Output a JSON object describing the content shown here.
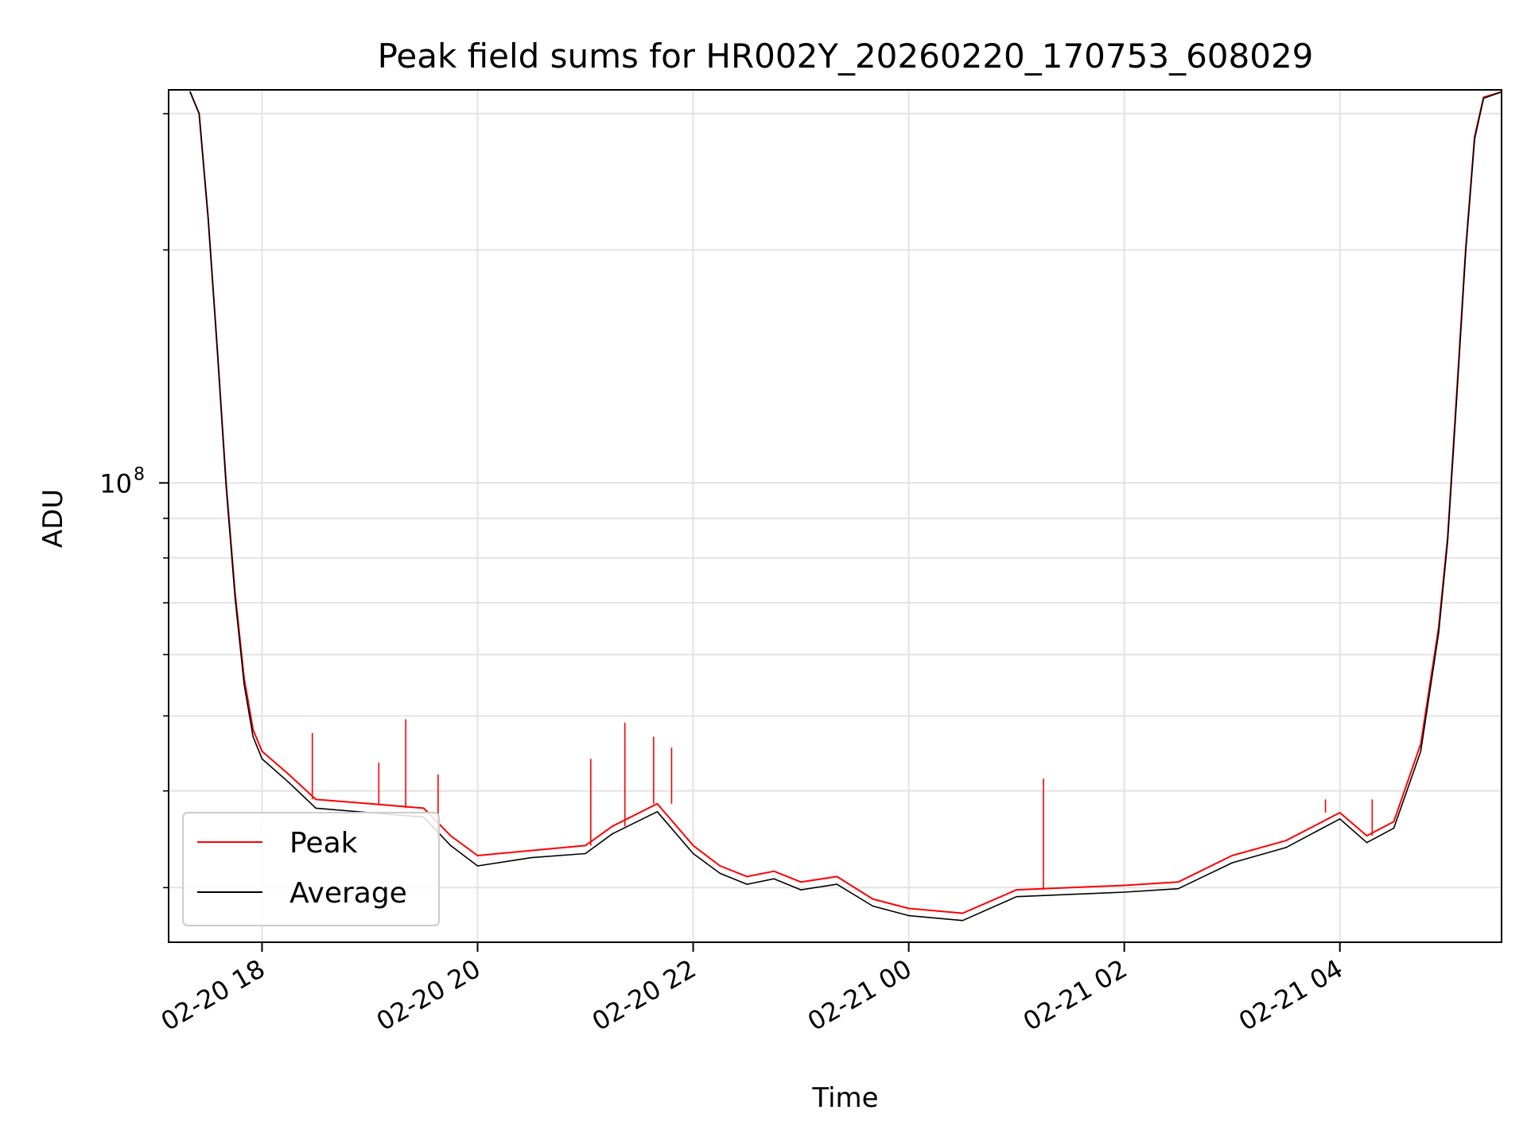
{
  "chart_data": {
    "type": "line",
    "title": "Peak field sums for HR002Y_20260220_170753_608029",
    "xlabel": "Time",
    "ylabel": "ADU",
    "x_type": "datetime",
    "xlim": [
      "2026-02-20 17:08",
      "2026-02-21 05:30"
    ],
    "ylim": [
      25500000,
      322000000
    ],
    "y_scale": "log",
    "x_ticks": [
      {
        "t": "2026-02-20 18:00",
        "label": "02-20 18"
      },
      {
        "t": "2026-02-20 20:00",
        "label": "02-20 20"
      },
      {
        "t": "2026-02-20 22:00",
        "label": "02-20 22"
      },
      {
        "t": "2026-02-21 00:00",
        "label": "02-21 00"
      },
      {
        "t": "2026-02-21 02:00",
        "label": "02-21 02"
      },
      {
        "t": "2026-02-21 04:00",
        "label": "02-21 04"
      }
    ],
    "y_ticks_major": [
      {
        "value": 100000000,
        "label": "10",
        "exponent": "8"
      }
    ],
    "y_ticks_minor": [
      30000000,
      40000000,
      50000000,
      60000000,
      70000000,
      80000000,
      90000000,
      200000000,
      300000000
    ],
    "grid": true,
    "legend_position": "lower-left",
    "series": [
      {
        "name": "Peak",
        "color": "#ff0000",
        "points": [
          [
            "2026-02-20 17:20",
            320000000
          ],
          [
            "2026-02-20 17:25",
            300000000
          ],
          [
            "2026-02-20 17:30",
            220000000
          ],
          [
            "2026-02-20 17:35",
            150000000
          ],
          [
            "2026-02-20 17:40",
            100000000
          ],
          [
            "2026-02-20 17:45",
            72000000
          ],
          [
            "2026-02-20 17:50",
            56000000
          ],
          [
            "2026-02-20 17:55",
            48000000
          ],
          [
            "2026-02-20 18:00",
            45000000
          ],
          [
            "2026-02-20 18:15",
            42000000
          ],
          [
            "2026-02-20 18:30",
            39000000
          ],
          [
            "2026-02-20 19:00",
            38500000
          ],
          [
            "2026-02-20 19:30",
            38000000
          ],
          [
            "2026-02-20 19:45",
            35000000
          ],
          [
            "2026-02-20 20:00",
            33000000
          ],
          [
            "2026-02-20 20:30",
            33500000
          ],
          [
            "2026-02-20 21:00",
            34000000
          ],
          [
            "2026-02-20 21:15",
            36000000
          ],
          [
            "2026-02-20 21:40",
            38500000
          ],
          [
            "2026-02-20 22:00",
            34000000
          ],
          [
            "2026-02-20 22:15",
            32000000
          ],
          [
            "2026-02-20 22:30",
            31000000
          ],
          [
            "2026-02-20 22:45",
            31500000
          ],
          [
            "2026-02-20 23:00",
            30500000
          ],
          [
            "2026-02-20 23:20",
            31000000
          ],
          [
            "2026-02-20 23:40",
            29000000
          ],
          [
            "2026-02-21 00:00",
            28200000
          ],
          [
            "2026-02-21 00:30",
            27800000
          ],
          [
            "2026-02-21 01:00",
            29800000
          ],
          [
            "2026-02-21 01:30",
            30000000
          ],
          [
            "2026-02-21 02:00",
            30200000
          ],
          [
            "2026-02-21 02:30",
            30500000
          ],
          [
            "2026-02-21 03:00",
            33000000
          ],
          [
            "2026-02-21 03:30",
            34500000
          ],
          [
            "2026-02-21 04:00",
            37500000
          ],
          [
            "2026-02-21 04:15",
            35000000
          ],
          [
            "2026-02-21 04:30",
            36500000
          ],
          [
            "2026-02-21 04:45",
            46000000
          ],
          [
            "2026-02-21 04:55",
            65000000
          ],
          [
            "2026-02-21 05:00",
            85000000
          ],
          [
            "2026-02-21 05:05",
            130000000
          ],
          [
            "2026-02-21 05:10",
            200000000
          ],
          [
            "2026-02-21 05:15",
            280000000
          ],
          [
            "2026-02-21 05:20",
            315000000
          ],
          [
            "2026-02-21 05:30",
            320000000
          ]
        ]
      },
      {
        "name": "Average",
        "color": "#000000",
        "points": [
          [
            "2026-02-20 17:20",
            320000000
          ],
          [
            "2026-02-20 17:25",
            300000000
          ],
          [
            "2026-02-20 17:30",
            220000000
          ],
          [
            "2026-02-20 17:35",
            150000000
          ],
          [
            "2026-02-20 17:40",
            99000000
          ],
          [
            "2026-02-20 17:45",
            71000000
          ],
          [
            "2026-02-20 17:50",
            55000000
          ],
          [
            "2026-02-20 17:55",
            47000000
          ],
          [
            "2026-02-20 18:00",
            44000000
          ],
          [
            "2026-02-20 18:15",
            41000000
          ],
          [
            "2026-02-20 18:30",
            38000000
          ],
          [
            "2026-02-20 19:00",
            37500000
          ],
          [
            "2026-02-20 19:30",
            37000000
          ],
          [
            "2026-02-20 19:45",
            34000000
          ],
          [
            "2026-02-20 20:00",
            32000000
          ],
          [
            "2026-02-20 20:30",
            32800000
          ],
          [
            "2026-02-20 21:00",
            33200000
          ],
          [
            "2026-02-20 21:15",
            35200000
          ],
          [
            "2026-02-20 21:40",
            37600000
          ],
          [
            "2026-02-20 22:00",
            33200000
          ],
          [
            "2026-02-20 22:15",
            31300000
          ],
          [
            "2026-02-20 22:30",
            30300000
          ],
          [
            "2026-02-20 22:45",
            30800000
          ],
          [
            "2026-02-20 23:00",
            29800000
          ],
          [
            "2026-02-20 23:20",
            30300000
          ],
          [
            "2026-02-20 23:40",
            28400000
          ],
          [
            "2026-02-21 00:00",
            27600000
          ],
          [
            "2026-02-21 00:30",
            27200000
          ],
          [
            "2026-02-21 01:00",
            29200000
          ],
          [
            "2026-02-21 01:30",
            29400000
          ],
          [
            "2026-02-21 02:00",
            29600000
          ],
          [
            "2026-02-21 02:30",
            29900000
          ],
          [
            "2026-02-21 03:00",
            32300000
          ],
          [
            "2026-02-21 03:30",
            33800000
          ],
          [
            "2026-02-21 04:00",
            36800000
          ],
          [
            "2026-02-21 04:15",
            34300000
          ],
          [
            "2026-02-21 04:30",
            35800000
          ],
          [
            "2026-02-21 04:45",
            45000000
          ],
          [
            "2026-02-21 04:55",
            64000000
          ],
          [
            "2026-02-21 05:00",
            84000000
          ],
          [
            "2026-02-21 05:05",
            128000000
          ],
          [
            "2026-02-21 05:10",
            198000000
          ],
          [
            "2026-02-21 05:15",
            278000000
          ],
          [
            "2026-02-21 05:20",
            314000000
          ],
          [
            "2026-02-21 05:30",
            320000000
          ]
        ]
      }
    ],
    "annotations_spikes_peak": [
      [
        "2026-02-20 18:28",
        47500000
      ],
      [
        "2026-02-20 19:05",
        43500000
      ],
      [
        "2026-02-20 19:20",
        49500000
      ],
      [
        "2026-02-20 19:38",
        42000000
      ],
      [
        "2026-02-20 21:03",
        44000000
      ],
      [
        "2026-02-20 21:22",
        49000000
      ],
      [
        "2026-02-20 21:38",
        47000000
      ],
      [
        "2026-02-20 21:48",
        45500000
      ],
      [
        "2026-02-21 01:15",
        41500000
      ],
      [
        "2026-02-21 03:52",
        39000000
      ],
      [
        "2026-02-21 04:18",
        39000000
      ]
    ]
  }
}
